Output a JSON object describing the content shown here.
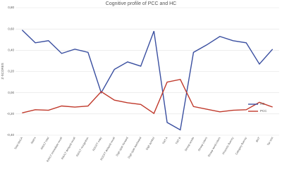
{
  "chart_data": {
    "type": "line",
    "title": "Cognitive profile of PCC and HC",
    "y_label": "Z-SCORES",
    "categories": [
      "Total MoCA",
      "Matrix",
      "RAVLT total",
      "RAVLT immediate recall",
      "RAVLT delayed recall",
      "RAVLT recognition",
      "ROCFT copy",
      "ROCFT delayed recall",
      "Digit span forward",
      "Digit span backward",
      "Digit symbol",
      "TMT A",
      "TMT B",
      "Stroop words",
      "Stroop colors",
      "Stroop word-colors",
      "Phonetic fluency",
      "Category fluency",
      "BNT",
      "Tan test"
    ],
    "series": [
      {
        "name": "HC",
        "color": "#3a4fa0",
        "values": [
          0.59,
          0.47,
          0.49,
          0.37,
          0.41,
          0.38,
          0.0,
          0.22,
          0.29,
          0.25,
          0.58,
          -0.28,
          -0.35,
          0.38,
          0.45,
          0.53,
          0.49,
          0.47,
          0.27,
          0.41
        ]
      },
      {
        "name": "PCC",
        "color": "#c0392b",
        "values": [
          -0.19,
          -0.16,
          -0.165,
          -0.125,
          -0.135,
          -0.125,
          0.01,
          -0.07,
          -0.095,
          -0.11,
          -0.195,
          0.1,
          0.125,
          -0.13,
          -0.155,
          -0.18,
          -0.165,
          -0.16,
          -0.09,
          -0.135
        ]
      }
    ],
    "ylim": [
      -0.4,
      0.8
    ],
    "yticks": [
      {
        "value": -0.4,
        "label": "-0,40"
      },
      {
        "value": -0.2,
        "label": "-0,20"
      },
      {
        "value": 0,
        "label": "0,00"
      },
      {
        "value": 0.2,
        "label": "0,20"
      },
      {
        "value": 0.4,
        "label": "0,40"
      },
      {
        "value": 0.6,
        "label": "0,60"
      },
      {
        "value": 0.8,
        "label": "0,80"
      }
    ],
    "grid": true,
    "legend": "right"
  }
}
